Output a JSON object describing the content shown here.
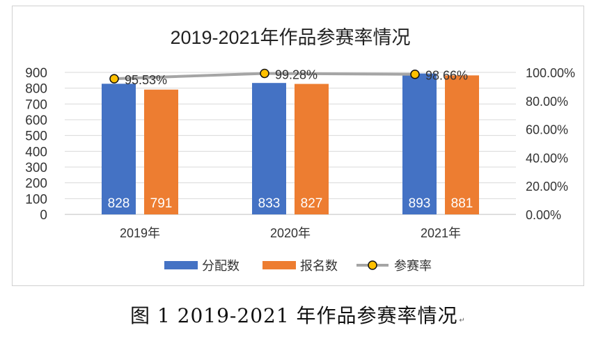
{
  "caption": {
    "text": "图 1 2019-2021 年作品参赛率情况",
    "mark": "↵"
  },
  "chart_data": {
    "type": "bar",
    "title": "2019-2021年作品参赛率情况",
    "categories": [
      "2019年",
      "2020年",
      "2021年"
    ],
    "series": [
      {
        "name": "分配数",
        "type": "bar",
        "axis": "left",
        "color": "#4472C4",
        "values": [
          828,
          833,
          893
        ],
        "labels": [
          "828",
          "833",
          "893"
        ]
      },
      {
        "name": "报名数",
        "type": "bar",
        "axis": "left",
        "color": "#ED7D31",
        "values": [
          791,
          827,
          881
        ],
        "labels": [
          "791",
          "827",
          "881"
        ]
      },
      {
        "name": "参赛率",
        "type": "line",
        "axis": "right",
        "color": "#A5A5A5",
        "marker_color": "#FFC000",
        "values": [
          95.53,
          99.28,
          98.66
        ],
        "labels": [
          "95.53%",
          "99.28%",
          "98.66%"
        ]
      }
    ],
    "y_left": {
      "ticks": [
        "0",
        "100",
        "200",
        "300",
        "400",
        "500",
        "600",
        "700",
        "800",
        "900"
      ],
      "ylim": [
        0,
        900
      ]
    },
    "y_right": {
      "ticks": [
        "0.00%",
        "20.00%",
        "40.00%",
        "60.00%",
        "80.00%",
        "100.00%"
      ],
      "ylim": [
        0,
        100
      ]
    },
    "grid": true,
    "legend_position": "bottom"
  }
}
